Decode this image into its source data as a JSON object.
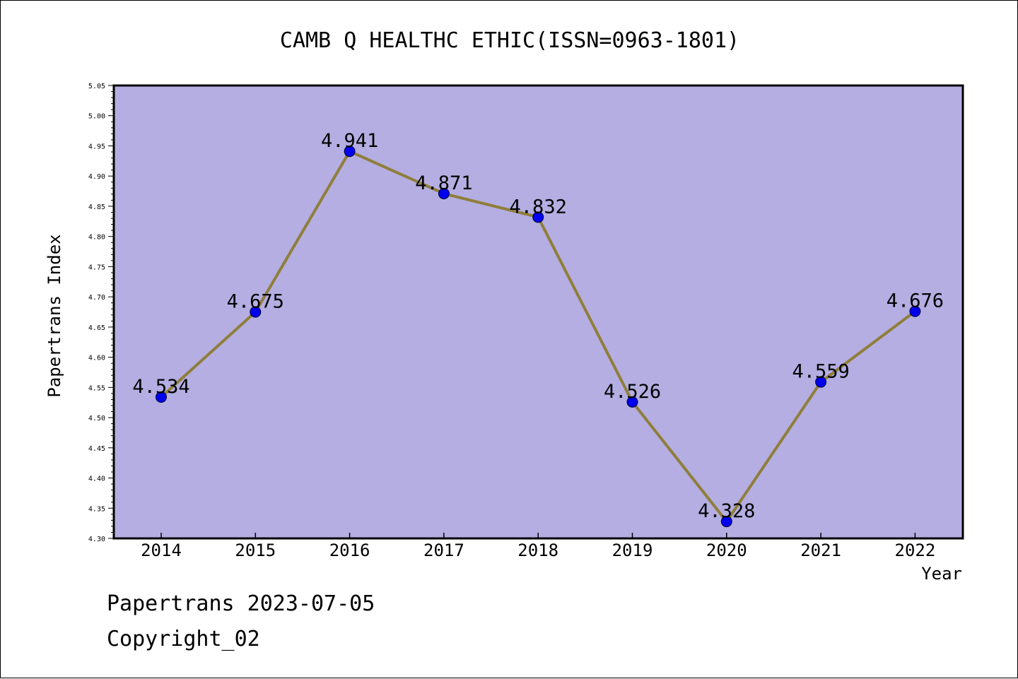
{
  "footer": {
    "date_line": "Papertrans 2023-07-05",
    "copyright": "Copyright_02"
  },
  "colors": {
    "plot_background": "#b4aee2",
    "line": "#8f7e3a",
    "marker": "#0000ee",
    "frame": "#000000"
  },
  "chart_data": {
    "type": "line",
    "title": "CAMB Q HEALTHC ETHIC(ISSN=0963-1801)",
    "xlabel": "Year",
    "ylabel": "Papertrans Index",
    "categories": [
      "2014",
      "2015",
      "2016",
      "2017",
      "2018",
      "2019",
      "2020",
      "2021",
      "2022"
    ],
    "series": [
      {
        "values": [
          4.534,
          4.675,
          4.941,
          4.871,
          4.832,
          4.526,
          4.328,
          4.559,
          4.676
        ],
        "labels": [
          "4.534",
          "4.675",
          "4.941",
          "4.871",
          "4.832",
          "4.526",
          "4.328",
          "4.559",
          "4.676"
        ]
      }
    ],
    "ylim": [
      4.3,
      5.05
    ],
    "yticks": [
      "4.30",
      "4.35",
      "4.40",
      "4.45",
      "4.50",
      "4.55",
      "4.60",
      "4.65",
      "4.70",
      "4.75",
      "4.80",
      "4.85",
      "4.90",
      "4.95",
      "5.00",
      "5.05"
    ],
    "grid": false,
    "legend": "none"
  }
}
